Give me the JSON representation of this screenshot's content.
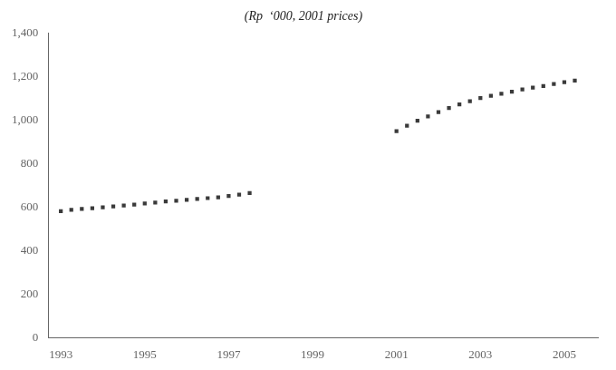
{
  "chart_data": {
    "type": "scatter",
    "subtitle": "(Rp  ‘000, 2001 prices)",
    "series": [
      {
        "x": [
          1993.0,
          1993.25,
          1993.5,
          1993.75,
          1994.0,
          1994.25,
          1994.5,
          1994.75,
          1995.0,
          1995.25,
          1995.5,
          1995.75,
          1996.0,
          1996.25,
          1996.5,
          1996.75,
          1997.0,
          1997.25,
          1997.5
        ],
        "values": [
          582,
          588,
          592,
          596,
          600,
          604,
          608,
          612,
          617,
          622,
          627,
          630,
          634,
          638,
          642,
          646,
          652,
          658,
          665
        ],
        "color": "#3a3a3a",
        "marker": "square"
      },
      {
        "x": [
          2001.0,
          2001.25,
          2001.5,
          2001.75,
          2002.0,
          2002.25,
          2002.5,
          2002.75,
          2003.0,
          2003.25,
          2003.5,
          2003.75,
          2004.0,
          2004.25,
          2004.5,
          2004.75,
          2005.0,
          2005.25
        ],
        "values": [
          950,
          975,
          998,
          1018,
          1038,
          1057,
          1073,
          1088,
          1102,
          1113,
          1122,
          1132,
          1142,
          1150,
          1158,
          1167,
          1175,
          1183
        ],
        "color": "#3a3a3a",
        "marker": "square"
      }
    ],
    "xlim": [
      1992.7,
      2005.8
    ],
    "xticks": [
      1993,
      1995,
      1997,
      1999,
      2001,
      2003,
      2005
    ],
    "ylim": [
      0,
      1400
    ],
    "yticks": [
      0,
      200,
      400,
      600,
      800,
      {
        "value": 1000,
        "label": "1,000"
      },
      {
        "value": 1200,
        "label": "1,200"
      },
      {
        "value": 1400,
        "label": "1,400"
      }
    ],
    "grid": false
  }
}
